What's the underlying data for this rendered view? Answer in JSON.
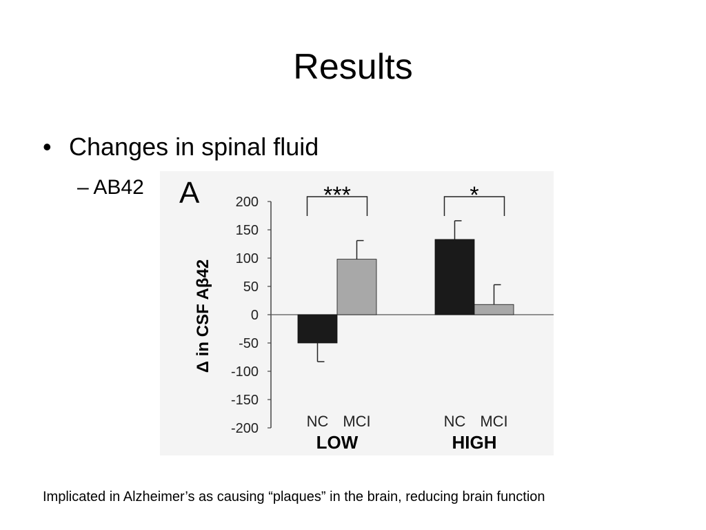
{
  "slide": {
    "title": "Results",
    "bullet": "Changes in spinal fluid",
    "bullet_marker": "•",
    "sub_bullet": "AB42",
    "sub_bullet_marker": "–",
    "caption": "Implicated in Alzheimer’s as causing “plaques” in the brain, reducing brain function"
  },
  "chart_data": {
    "type": "bar",
    "panel_label": "A",
    "ylabel": "Δ in CSF Aβ42",
    "ylim": [
      -200,
      200
    ],
    "yticks": [
      200,
      150,
      100,
      50,
      0,
      -50,
      -100,
      -150,
      -200
    ],
    "groups": [
      {
        "name": "LOW",
        "bars": [
          {
            "label": "NC",
            "value": -50,
            "error": 33,
            "color": "#1a1a1a"
          },
          {
            "label": "MCI",
            "value": 98,
            "error": 33,
            "color": "#a8a8a8"
          }
        ],
        "significance": "***"
      },
      {
        "name": "HIGH",
        "bars": [
          {
            "label": "NC",
            "value": 133,
            "error": 33,
            "color": "#1a1a1a"
          },
          {
            "label": "MCI",
            "value": 18,
            "error": 35,
            "color": "#a8a8a8"
          }
        ],
        "significance": "*"
      }
    ]
  }
}
